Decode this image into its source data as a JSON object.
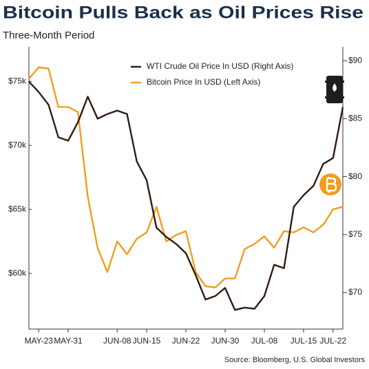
{
  "chart_data": {
    "type": "line",
    "title": "Bitcoin Pulls Back as Oil Prices Rise",
    "subtitle": "Three-Month Period",
    "source": "Source: Bloomberg, U.S. Global Investors",
    "categories": [
      null,
      "MAY-23",
      null,
      null,
      "MAY-31",
      null,
      null,
      null,
      null,
      "JUN-08",
      null,
      null,
      "JUN-15",
      null,
      null,
      null,
      "JUN-22",
      null,
      null,
      null,
      "JUN-30",
      null,
      null,
      null,
      "JUL-08",
      null,
      null,
      null,
      "JUL-15",
      null,
      null,
      "JUL-22",
      null
    ],
    "series": [
      {
        "name": "WTI Crude Oil Price In USD (Right Axis)",
        "color": "#2e1a12",
        "axis": "y2",
        "values": [
          88.2,
          87.3,
          86.2,
          83.4,
          83.1,
          84.7,
          86.9,
          85.0,
          85.4,
          85.7,
          85.4,
          81.3,
          79.7,
          75.6,
          74.8,
          74.2,
          73.4,
          71.5,
          69.4,
          69.7,
          70.4,
          68.5,
          68.7,
          68.6,
          69.7,
          72.4,
          72.1,
          77.4,
          78.4,
          79.2,
          81.1,
          81.6,
          86.0
        ]
      },
      {
        "name": "Bitcoin Price In USD (Left Axis)",
        "color": "#f39c1f",
        "values": [
          75200,
          76100,
          76000,
          73000,
          73000,
          72600,
          66000,
          62000,
          60100,
          62500,
          61500,
          62700,
          63200,
          65200,
          62500,
          63000,
          63300,
          60100,
          59000,
          58900,
          59600,
          59600,
          61900,
          62300,
          62900,
          62000,
          63300,
          63200,
          63600,
          63200,
          63800,
          65000,
          65200
        ]
      }
    ],
    "ylim": [
      55650,
      77700
    ],
    "yticks": [
      {
        "value": 60000,
        "label": "$60k"
      },
      {
        "value": 65000,
        "label": "$65k"
      },
      {
        "value": 70000,
        "label": "$70k"
      },
      {
        "value": 75000,
        "label": "$75k"
      }
    ],
    "y2lim": [
      66.85,
      91.2
    ],
    "y2ticks": [
      {
        "value": 70,
        "label": "$70"
      },
      {
        "value": 75,
        "label": "$75"
      },
      {
        "value": 80,
        "label": "$80"
      },
      {
        "value": 85,
        "label": "$85"
      },
      {
        "value": 90,
        "label": "$90"
      }
    ],
    "grid": false
  }
}
